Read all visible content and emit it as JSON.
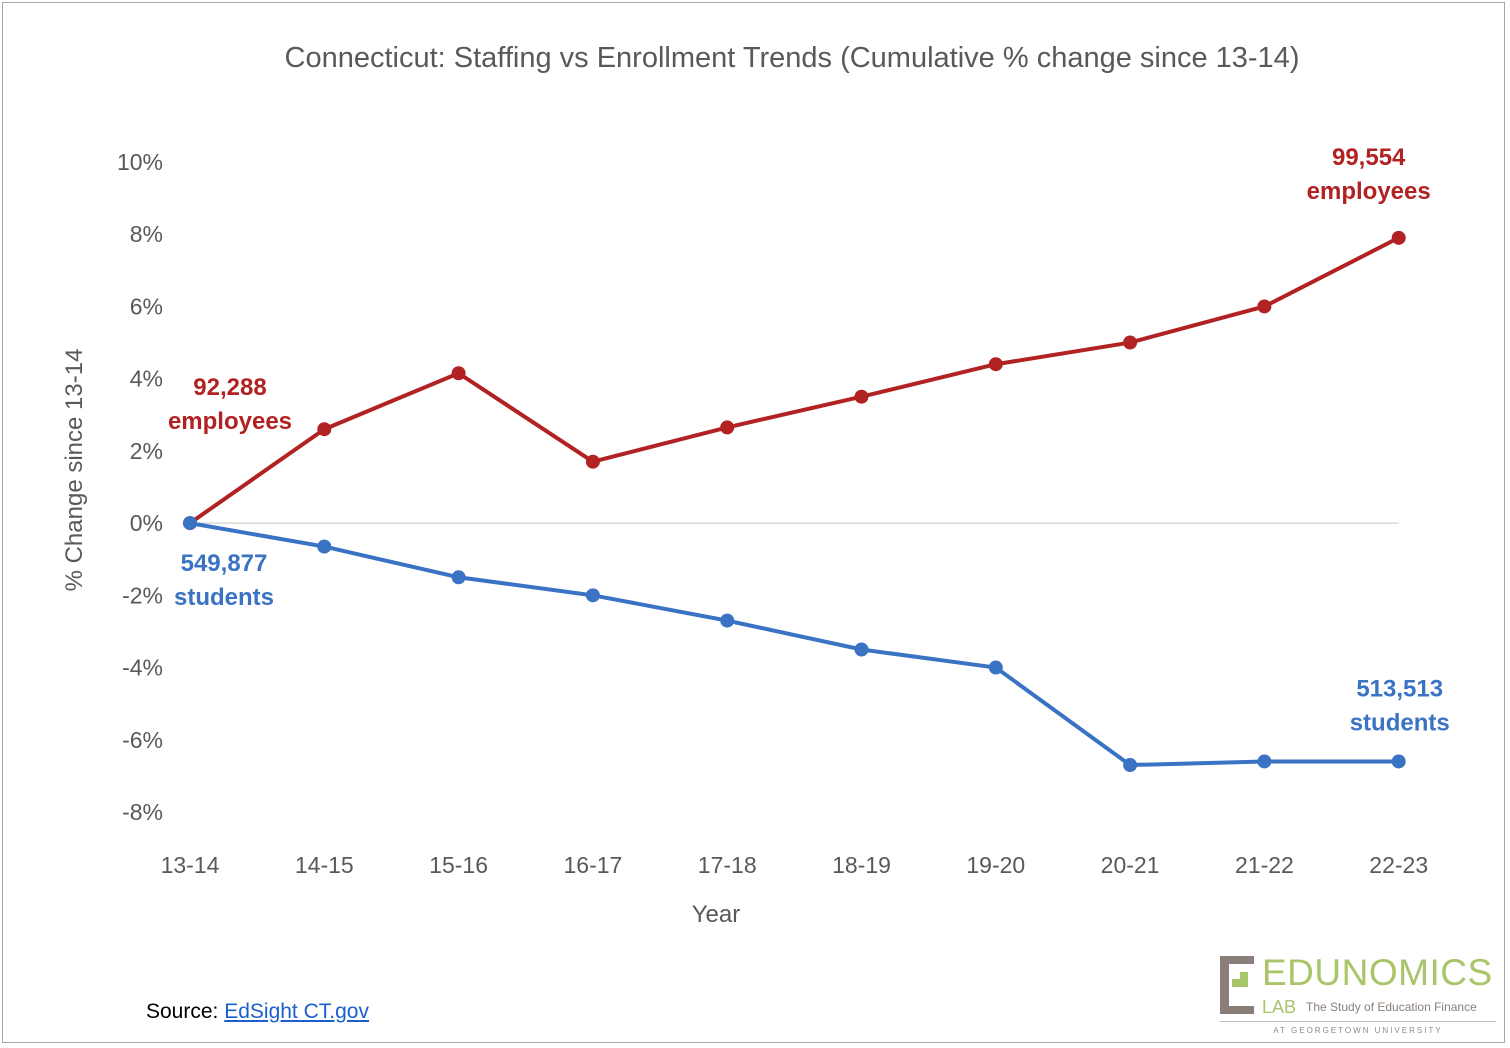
{
  "chart_data": {
    "type": "line",
    "title": "Connecticut: Staffing vs Enrollment Trends (Cumulative % change since 13-14)",
    "xlabel": "Year",
    "ylabel": "% Change since 13-14",
    "categories": [
      "13-14",
      "14-15",
      "15-16",
      "16-17",
      "17-18",
      "18-19",
      "19-20",
      "20-21",
      "21-22",
      "22-23"
    ],
    "ylim": [
      -8,
      10
    ],
    "yticks": [
      10,
      8,
      6,
      4,
      2,
      0,
      -2,
      -4,
      -6,
      -8
    ],
    "ytick_labels": [
      "10%",
      "8%",
      "6%",
      "4%",
      "2%",
      "0%",
      "-2%",
      "-4%",
      "-6%",
      "-8%"
    ],
    "grid": false,
    "zero_line": true,
    "legend": "none",
    "series": [
      {
        "key": "employees",
        "color": "#b22222",
        "values": [
          0.0,
          2.6,
          4.15,
          1.7,
          2.65,
          3.5,
          4.4,
          5.0,
          6.0,
          7.9
        ]
      },
      {
        "key": "students",
        "color": "#3a72c4",
        "values": [
          0.0,
          -0.65,
          -1.5,
          -2.0,
          -2.7,
          -3.5,
          -4.0,
          -6.7,
          -6.6,
          -6.6
        ]
      }
    ],
    "annotations": [
      {
        "series": "employees",
        "at": "13-14",
        "line1": "92,288",
        "line2": "employees",
        "color": "#b22222"
      },
      {
        "series": "employees",
        "at": "22-23",
        "line1": "99,554",
        "line2": "employees",
        "color": "#b22222"
      },
      {
        "series": "students",
        "at": "13-14",
        "line1": "549,877",
        "line2": "students",
        "color": "#3a72c4"
      },
      {
        "series": "students",
        "at": "22-23",
        "line1": "513,513",
        "line2": "students",
        "color": "#3a72c4"
      }
    ]
  },
  "source": {
    "label": "Source:",
    "link_text": "EdSight CT.gov"
  },
  "logo": {
    "wordmark": "EDUNOMICS",
    "lab": "LAB",
    "tagline": "The Study of Education Finance",
    "university": "AT GEORGETOWN UNIVERSITY",
    "green": "#a9c56a",
    "taupe": "#8a7f78"
  }
}
